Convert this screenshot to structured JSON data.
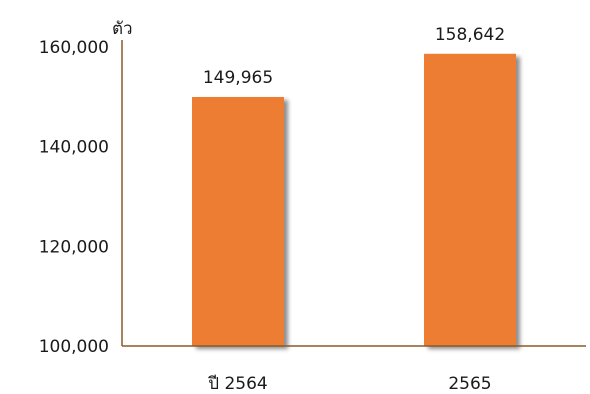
{
  "chart_data": {
    "type": "bar",
    "categories": [
      "ปี 2564",
      "2565"
    ],
    "values": [
      149965,
      158642
    ],
    "data_labels": [
      "149,965",
      "158,642"
    ],
    "ylabel": "ตัว",
    "ylim": [
      100000,
      160000
    ],
    "yticks": [
      100000,
      120000,
      140000,
      160000
    ],
    "ytick_labels": [
      "100,000",
      "120,000",
      "140,000",
      "160,000"
    ],
    "grid": false,
    "colors": {
      "bar": "#ED7D31",
      "bar_shadow": "#b9b9b9",
      "axis": "#8B5A2B"
    }
  }
}
